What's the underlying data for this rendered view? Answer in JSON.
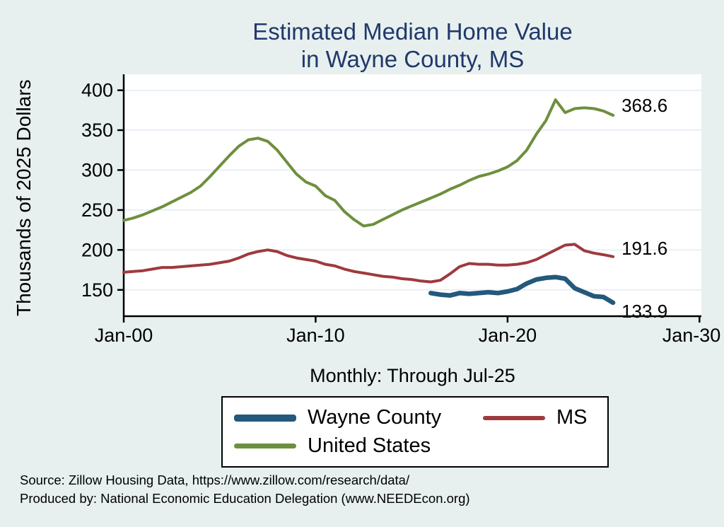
{
  "title": {
    "line1": "Estimated Median Home Value",
    "line2": "in Wayne County, MS"
  },
  "axes": {
    "y_label": "Thousands of 2025 Dollars",
    "x_note": "Monthly: Through Jul-25"
  },
  "legend": {
    "items": [
      {
        "label": "Wayne County",
        "color": "#24587c",
        "thickness": 10
      },
      {
        "label": "MS",
        "color": "#9e3a3e",
        "thickness": 6
      },
      {
        "label": "United States",
        "color": "#6e8f3d",
        "thickness": 7
      }
    ]
  },
  "footer": {
    "line1": "Source: Zillow Housing Data, https://www.zillow.com/research/data/",
    "line2": "Produced by: National Economic Education Delegation (www.NEEDEcon.org)"
  },
  "chart_data": {
    "type": "line",
    "title": "Estimated Median Home Value in Wayne County, MS",
    "ylabel": "Thousands of 2025 Dollars",
    "xlim": [
      2000,
      2030.1
    ],
    "ylim": [
      117,
      420
    ],
    "grid": true,
    "grid_color": "#dce8f1",
    "axis_color": "#000000",
    "x_ticks": [
      {
        "v": 2000,
        "label": "Jan-00"
      },
      {
        "v": 2010,
        "label": "Jan-10"
      },
      {
        "v": 2020,
        "label": "Jan-20"
      },
      {
        "v": 2030,
        "label": "Jan-30"
      }
    ],
    "y_ticks": [
      150,
      200,
      250,
      300,
      350,
      400
    ],
    "series": [
      {
        "name": "United States",
        "color": "#6e8f3d",
        "width": 4,
        "x_start": 2000,
        "x_step": 0.5,
        "end_label": "368.6",
        "label_dy": -14,
        "y": [
          237,
          240,
          244,
          249,
          254,
          260,
          266,
          272,
          280,
          292,
          305,
          318,
          330,
          338,
          340,
          336,
          325,
          310,
          295,
          285,
          280,
          268,
          262,
          248,
          238,
          230,
          232,
          238,
          244,
          250,
          255,
          260,
          265,
          270,
          276,
          281,
          287,
          292,
          295,
          299,
          304,
          312,
          325,
          345,
          362,
          388,
          372,
          377,
          378,
          377,
          374,
          368.6
        ]
      },
      {
        "name": "MS",
        "color": "#9e3a3e",
        "width": 4,
        "x_start": 2000,
        "x_step": 0.5,
        "end_label": "191.6",
        "label_dy": -12,
        "y": [
          172,
          173,
          174,
          176,
          178,
          178,
          179,
          180,
          181,
          182,
          184,
          186,
          190,
          195,
          198,
          200,
          198,
          193,
          190,
          188,
          186,
          182,
          180,
          176,
          173,
          171,
          169,
          167,
          166,
          164,
          163,
          161,
          160,
          162,
          170,
          179,
          183,
          182,
          182,
          181,
          181,
          182,
          184,
          188,
          194,
          200,
          206,
          207,
          199,
          196,
          194,
          191.6
        ]
      },
      {
        "name": "Wayne County",
        "color": "#24587c",
        "width": 6.5,
        "x_start": 2016,
        "x_step": 0.5,
        "end_label": "133.9",
        "label_dy": 12,
        "y": [
          146,
          144,
          143,
          146,
          145,
          146,
          147,
          146,
          148,
          151,
          158,
          163,
          165,
          166,
          164,
          152,
          147,
          142,
          141,
          133.9
        ]
      }
    ]
  }
}
